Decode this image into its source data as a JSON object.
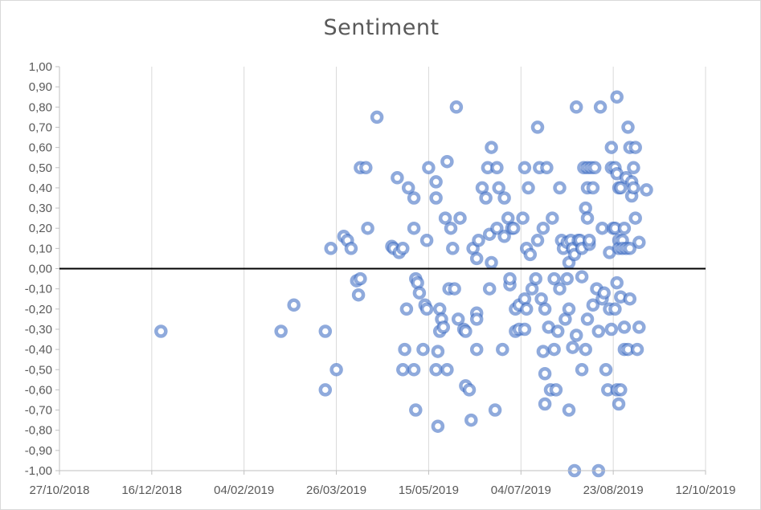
{
  "chart_data": {
    "type": "scatter",
    "title": "Sentiment",
    "xlabel": "",
    "ylabel": "",
    "x_ticks": [
      "27/10/2018",
      "16/12/2018",
      "04/02/2019",
      "26/03/2019",
      "15/05/2019",
      "04/07/2019",
      "23/08/2019",
      "12/10/2019"
    ],
    "y_ticks": [
      "1,00",
      "0,90",
      "0,80",
      "0,70",
      "0,60",
      "0,50",
      "0,40",
      "0,30",
      "0,20",
      "0,10",
      "0,00",
      "-0,10",
      "-0,20",
      "-0,30",
      "-0,40",
      "-0,50",
      "-0,60",
      "-0,70",
      "-0,80",
      "-0,90",
      "-1,00"
    ],
    "xlim": [
      "2018-10-27",
      "2019-10-12"
    ],
    "ylim": [
      -1.0,
      1.0
    ],
    "grid": "vertical",
    "zero_line": true,
    "marker_color": "#4472c4",
    "points": [
      [
        "2018-12-21",
        -0.31
      ],
      [
        "2019-02-24",
        -0.31
      ],
      [
        "2019-03-03",
        -0.18
      ],
      [
        "2019-03-20",
        -0.31
      ],
      [
        "2019-03-20",
        -0.6
      ],
      [
        "2019-03-23",
        0.1
      ],
      [
        "2019-03-26",
        -0.5
      ],
      [
        "2019-03-30",
        0.16
      ],
      [
        "2019-04-01",
        0.14
      ],
      [
        "2019-04-03",
        0.1
      ],
      [
        "2019-04-06",
        -0.06
      ],
      [
        "2019-04-07",
        -0.13
      ],
      [
        "2019-04-08",
        -0.05
      ],
      [
        "2019-04-08",
        0.5
      ],
      [
        "2019-04-11",
        0.5
      ],
      [
        "2019-04-12",
        0.2
      ],
      [
        "2019-04-17",
        0.75
      ],
      [
        "2019-04-25",
        0.11
      ],
      [
        "2019-04-26",
        0.1
      ],
      [
        "2019-04-28",
        0.45
      ],
      [
        "2019-04-29",
        0.08
      ],
      [
        "2019-05-01",
        0.1
      ],
      [
        "2019-05-01",
        -0.5
      ],
      [
        "2019-05-02",
        -0.4
      ],
      [
        "2019-05-03",
        -0.2
      ],
      [
        "2019-05-04",
        0.4
      ],
      [
        "2019-05-07",
        0.35
      ],
      [
        "2019-05-07",
        -0.5
      ],
      [
        "2019-05-07",
        0.2
      ],
      [
        "2019-05-08",
        -0.05
      ],
      [
        "2019-05-08",
        -0.7
      ],
      [
        "2019-05-09",
        -0.07
      ],
      [
        "2019-05-10",
        -0.12
      ],
      [
        "2019-05-12",
        -0.4
      ],
      [
        "2019-05-13",
        -0.18
      ],
      [
        "2019-05-14",
        -0.2
      ],
      [
        "2019-05-14",
        0.14
      ],
      [
        "2019-05-15",
        0.5
      ],
      [
        "2019-05-19",
        0.35
      ],
      [
        "2019-05-19",
        0.43
      ],
      [
        "2019-05-19",
        -0.5
      ],
      [
        "2019-05-20",
        -0.41
      ],
      [
        "2019-05-20",
        -0.78
      ],
      [
        "2019-05-21",
        -0.2
      ],
      [
        "2019-05-21",
        -0.31
      ],
      [
        "2019-05-22",
        -0.25
      ],
      [
        "2019-05-23",
        -0.29
      ],
      [
        "2019-05-24",
        0.25
      ],
      [
        "2019-05-25",
        0.53
      ],
      [
        "2019-05-25",
        -0.5
      ],
      [
        "2019-05-26",
        -0.1
      ],
      [
        "2019-05-27",
        0.2
      ],
      [
        "2019-05-28",
        0.1
      ],
      [
        "2019-05-29",
        -0.1
      ],
      [
        "2019-05-30",
        0.8
      ],
      [
        "2019-05-31",
        -0.25
      ],
      [
        "2019-06-01",
        0.25
      ],
      [
        "2019-06-03",
        -0.3
      ],
      [
        "2019-06-04",
        -0.31
      ],
      [
        "2019-06-04",
        -0.58
      ],
      [
        "2019-06-06",
        -0.6
      ],
      [
        "2019-06-07",
        -0.75
      ],
      [
        "2019-06-08",
        0.1
      ],
      [
        "2019-06-10",
        -0.22
      ],
      [
        "2019-06-10",
        -0.25
      ],
      [
        "2019-06-10",
        0.05
      ],
      [
        "2019-06-10",
        -0.4
      ],
      [
        "2019-06-11",
        0.14
      ],
      [
        "2019-06-13",
        0.4
      ],
      [
        "2019-06-15",
        0.35
      ],
      [
        "2019-06-16",
        0.5
      ],
      [
        "2019-06-17",
        0.17
      ],
      [
        "2019-06-17",
        -0.1
      ],
      [
        "2019-06-18",
        0.6
      ],
      [
        "2019-06-18",
        0.03
      ],
      [
        "2019-06-20",
        -0.7
      ],
      [
        "2019-06-21",
        0.2
      ],
      [
        "2019-06-21",
        0.5
      ],
      [
        "2019-06-22",
        0.4
      ],
      [
        "2019-06-24",
        -0.4
      ],
      [
        "2019-06-25",
        0.35
      ],
      [
        "2019-06-25",
        0.16
      ],
      [
        "2019-06-27",
        0.25
      ],
      [
        "2019-06-28",
        -0.08
      ],
      [
        "2019-06-28",
        -0.05
      ],
      [
        "2019-06-29",
        0.2
      ],
      [
        "2019-06-30",
        0.2
      ],
      [
        "2019-07-01",
        -0.2
      ],
      [
        "2019-07-01",
        -0.31
      ],
      [
        "2019-07-03",
        -0.3
      ],
      [
        "2019-07-03",
        -0.18
      ],
      [
        "2019-07-05",
        0.25
      ],
      [
        "2019-07-06",
        0.5
      ],
      [
        "2019-07-06",
        -0.3
      ],
      [
        "2019-07-06",
        -0.15
      ],
      [
        "2019-07-07",
        -0.2
      ],
      [
        "2019-07-07",
        0.1
      ],
      [
        "2019-07-08",
        0.4
      ],
      [
        "2019-07-09",
        0.07
      ],
      [
        "2019-07-10",
        -0.1
      ],
      [
        "2019-07-12",
        -0.05
      ],
      [
        "2019-07-13",
        0.14
      ],
      [
        "2019-07-13",
        0.7
      ],
      [
        "2019-07-14",
        0.5
      ],
      [
        "2019-07-15",
        -0.15
      ],
      [
        "2019-07-16",
        0.2
      ],
      [
        "2019-07-16",
        -0.41
      ],
      [
        "2019-07-17",
        -0.2
      ],
      [
        "2019-07-17",
        -0.52
      ],
      [
        "2019-07-17",
        -0.67
      ],
      [
        "2019-07-18",
        0.5
      ],
      [
        "2019-07-19",
        -0.29
      ],
      [
        "2019-07-20",
        -0.6
      ],
      [
        "2019-07-21",
        0.25
      ],
      [
        "2019-07-22",
        -0.05
      ],
      [
        "2019-07-22",
        -0.4
      ],
      [
        "2019-07-23",
        -0.6
      ],
      [
        "2019-07-24",
        -0.31
      ],
      [
        "2019-07-25",
        -0.1
      ],
      [
        "2019-07-25",
        0.4
      ],
      [
        "2019-07-26",
        0.14
      ],
      [
        "2019-07-27",
        0.1
      ],
      [
        "2019-07-28",
        -0.25
      ],
      [
        "2019-07-29",
        0.13
      ],
      [
        "2019-07-29",
        -0.05
      ],
      [
        "2019-07-30",
        0.03
      ],
      [
        "2019-07-30",
        -0.2
      ],
      [
        "2019-07-30",
        -0.7
      ],
      [
        "2019-07-31",
        0.14
      ],
      [
        "2019-08-01",
        0.1
      ],
      [
        "2019-08-01",
        -0.39
      ],
      [
        "2019-08-02",
        0.07
      ],
      [
        "2019-08-02",
        -1.0
      ],
      [
        "2019-08-03",
        0.8
      ],
      [
        "2019-08-03",
        -0.33
      ],
      [
        "2019-08-04",
        0.14
      ],
      [
        "2019-08-05",
        0.14
      ],
      [
        "2019-08-06",
        0.1
      ],
      [
        "2019-08-06",
        -0.5
      ],
      [
        "2019-08-06",
        -0.04
      ],
      [
        "2019-08-07",
        0.5
      ],
      [
        "2019-08-08",
        0.3
      ],
      [
        "2019-08-08",
        -0.4
      ],
      [
        "2019-08-09",
        0.5
      ],
      [
        "2019-08-09",
        0.25
      ],
      [
        "2019-08-09",
        -0.25
      ],
      [
        "2019-08-09",
        0.4
      ],
      [
        "2019-08-10",
        0.12
      ],
      [
        "2019-08-10",
        0.14
      ],
      [
        "2019-08-11",
        0.5
      ],
      [
        "2019-08-12",
        0.4
      ],
      [
        "2019-08-12",
        -0.18
      ],
      [
        "2019-08-13",
        0.5
      ],
      [
        "2019-08-14",
        -0.1
      ],
      [
        "2019-08-15",
        -0.31
      ],
      [
        "2019-08-15",
        -1.0
      ],
      [
        "2019-08-16",
        0.8
      ],
      [
        "2019-08-17",
        0.2
      ],
      [
        "2019-08-17",
        -0.15
      ],
      [
        "2019-08-18",
        -0.12
      ],
      [
        "2019-08-19",
        -0.5
      ],
      [
        "2019-08-20",
        -0.6
      ],
      [
        "2019-08-21",
        0.08
      ],
      [
        "2019-08-21",
        -0.2
      ],
      [
        "2019-08-22",
        0.5
      ],
      [
        "2019-08-22",
        0.6
      ],
      [
        "2019-08-22",
        -0.3
      ],
      [
        "2019-08-23",
        0.2
      ],
      [
        "2019-08-24",
        0.5
      ],
      [
        "2019-08-24",
        0.2
      ],
      [
        "2019-08-24",
        -0.2
      ],
      [
        "2019-08-25",
        0.47
      ],
      [
        "2019-08-25",
        -0.07
      ],
      [
        "2019-08-25",
        -0.6
      ],
      [
        "2019-08-25",
        0.85
      ],
      [
        "2019-08-26",
        0.4
      ],
      [
        "2019-08-26",
        0.14
      ],
      [
        "2019-08-26",
        -0.67
      ],
      [
        "2019-08-26",
        0.1
      ],
      [
        "2019-08-27",
        -0.6
      ],
      [
        "2019-08-27",
        0.4
      ],
      [
        "2019-08-27",
        -0.14
      ],
      [
        "2019-08-28",
        0.14
      ],
      [
        "2019-08-28",
        0.1
      ],
      [
        "2019-08-29",
        -0.29
      ],
      [
        "2019-08-29",
        0.2
      ],
      [
        "2019-08-29",
        -0.4
      ],
      [
        "2019-08-30",
        0.45
      ],
      [
        "2019-08-30",
        0.1
      ],
      [
        "2019-08-31",
        0.7
      ],
      [
        "2019-08-31",
        -0.4
      ],
      [
        "2019-09-01",
        0.6
      ],
      [
        "2019-09-01",
        -0.15
      ],
      [
        "2019-09-01",
        0.1
      ],
      [
        "2019-09-02",
        0.36
      ],
      [
        "2019-09-02",
        0.43
      ],
      [
        "2019-09-03",
        0.4
      ],
      [
        "2019-09-03",
        0.5
      ],
      [
        "2019-09-04",
        0.6
      ],
      [
        "2019-09-04",
        0.25
      ],
      [
        "2019-09-05",
        -0.4
      ],
      [
        "2019-09-06",
        -0.29
      ],
      [
        "2019-09-06",
        0.13
      ],
      [
        "2019-09-10",
        0.39
      ]
    ]
  }
}
